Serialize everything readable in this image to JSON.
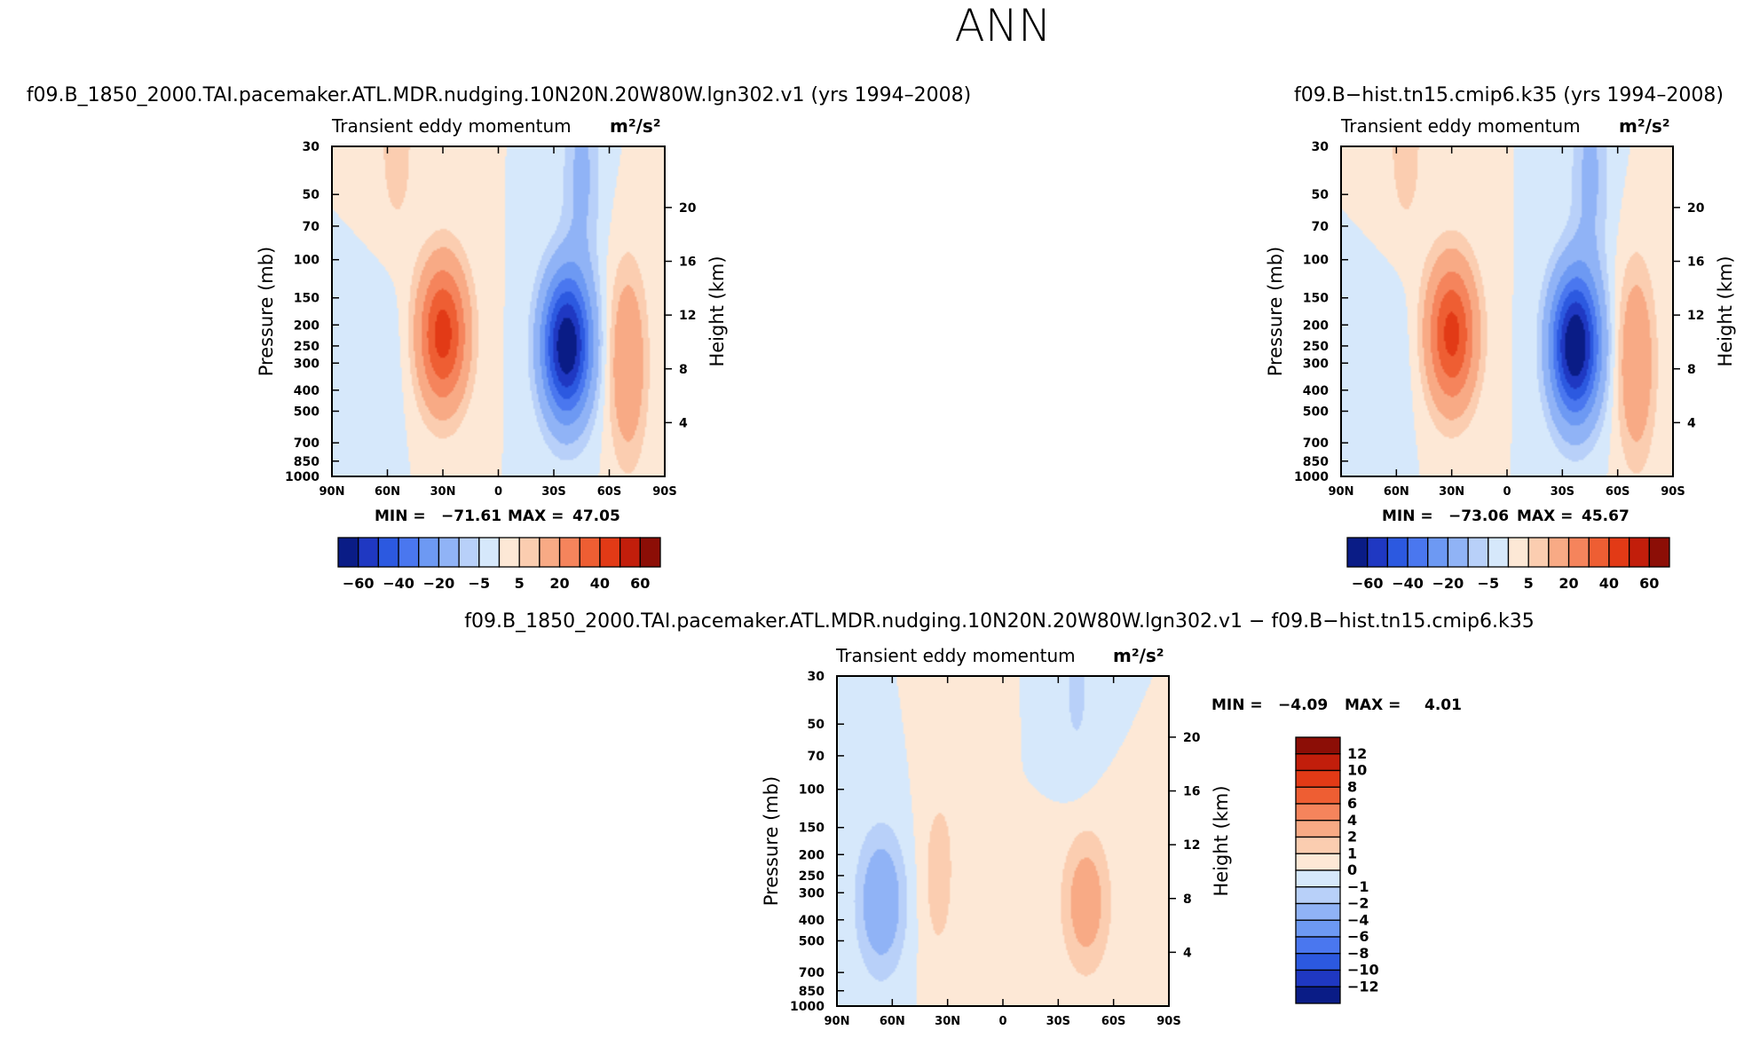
{
  "figure_title": "ANN",
  "chart_data": [
    {
      "id": "panel1",
      "type": "contour",
      "case": "f09.B_1850_2000.TAI.pacemaker.ATL.MDR.nudging.10N20N.20W80W.lgn302.v1 (yrs 1994–2008)",
      "title": "Transient  eddy  momentum",
      "units": "m²/s²",
      "ylabel": "Pressure (mb)",
      "y2label": "Height (km)",
      "xticks": [
        "90N",
        "60N",
        "30N",
        "0",
        "30S",
        "60S",
        "90S"
      ],
      "yticks": [
        30,
        50,
        70,
        100,
        150,
        200,
        250,
        300,
        400,
        500,
        700,
        850,
        1000
      ],
      "height_ticks": [
        20,
        16,
        12,
        8,
        4
      ],
      "min_label": "MIN =",
      "max_label": "MAX =",
      "min": "−71.61",
      "max": "47.05",
      "features": [
        {
          "lat": 30,
          "p": 220,
          "value": 45
        },
        {
          "lat": -37,
          "p": 250,
          "value": -70
        },
        {
          "lat": -70,
          "p": 300,
          "value": 20
        },
        {
          "lat": 60,
          "p": 300,
          "value": -3
        },
        {
          "lat": 55,
          "p": 30,
          "value": 8
        },
        {
          "lat": -45,
          "p": 40,
          "value": -12
        }
      ],
      "colorbar": {
        "levels": [
          -60,
          -50,
          -40,
          -30,
          -20,
          -10,
          -5,
          0,
          5,
          10,
          20,
          30,
          40,
          50,
          60
        ],
        "labels": [
          "−60",
          "−40",
          "−20",
          "−5",
          "5",
          "20",
          "40",
          "60"
        ],
        "colors": [
          "#0a1c86",
          "#1f38c2",
          "#2c59e0",
          "#4a77ef",
          "#6d99f3",
          "#90b3f6",
          "#b8d0f9",
          "#d6e8fb",
          "#fde8d6",
          "#fbcdb0",
          "#f8aa85",
          "#f5845c",
          "#ee5e33",
          "#e23a16",
          "#c21e0b",
          "#8c0e06"
        ]
      }
    },
    {
      "id": "panel2",
      "type": "contour",
      "case": "f09.B−hist.tn15.cmip6.k35 (yrs 1994–2008)",
      "title": "Transient  eddy  momentum",
      "units": "m²/s²",
      "ylabel": "Pressure (mb)",
      "y2label": "Height (km)",
      "xticks": [
        "90N",
        "60N",
        "30N",
        "0",
        "30S",
        "60S",
        "90S"
      ],
      "yticks": [
        30,
        50,
        70,
        100,
        150,
        200,
        250,
        300,
        400,
        500,
        700,
        850,
        1000
      ],
      "height_ticks": [
        20,
        16,
        12,
        8,
        4
      ],
      "min_label": "MIN =",
      "max_label": "MAX =",
      "min": "−73.06",
      "max": "45.67",
      "features": [
        {
          "lat": 30,
          "p": 220,
          "value": 44
        },
        {
          "lat": -37,
          "p": 250,
          "value": -72
        },
        {
          "lat": -70,
          "p": 300,
          "value": 20
        },
        {
          "lat": 60,
          "p": 300,
          "value": -3
        },
        {
          "lat": 55,
          "p": 30,
          "value": 8
        },
        {
          "lat": -45,
          "p": 40,
          "value": -12
        }
      ],
      "colorbar": {
        "levels": [
          -60,
          -50,
          -40,
          -30,
          -20,
          -10,
          -5,
          0,
          5,
          10,
          20,
          30,
          40,
          50,
          60
        ],
        "labels": [
          "−60",
          "−40",
          "−20",
          "−5",
          "5",
          "20",
          "40",
          "60"
        ],
        "colors": [
          "#0a1c86",
          "#1f38c2",
          "#2c59e0",
          "#4a77ef",
          "#6d99f3",
          "#90b3f6",
          "#b8d0f9",
          "#d6e8fb",
          "#fde8d6",
          "#fbcdb0",
          "#f8aa85",
          "#f5845c",
          "#ee5e33",
          "#e23a16",
          "#c21e0b",
          "#8c0e06"
        ]
      }
    },
    {
      "id": "panel3",
      "type": "contour",
      "case": "f09.B_1850_2000.TAI.pacemaker.ATL.MDR.nudging.10N20N.20W80W.lgn302.v1  −  f09.B−hist.tn15.cmip6.k35",
      "title": "Transient  eddy  momentum",
      "units": "m²/s²",
      "ylabel": "Pressure (mb)",
      "y2label": "Height (km)",
      "xticks": [
        "90N",
        "60N",
        "30N",
        "0",
        "30S",
        "60S",
        "90S"
      ],
      "yticks": [
        30,
        50,
        70,
        100,
        150,
        200,
        250,
        300,
        400,
        500,
        700,
        850,
        1000
      ],
      "height_ticks": [
        20,
        16,
        12,
        8,
        4
      ],
      "min_label": "MIN =",
      "max_label": "MAX =",
      "min": "−4.09",
      "max": "4.01",
      "features": [
        {
          "lat": 66,
          "p": 330,
          "value": -3.5
        },
        {
          "lat": -45,
          "p": 330,
          "value": 3.0
        },
        {
          "lat": 35,
          "p": 250,
          "value": 1.5
        },
        {
          "lat": -40,
          "p": 35,
          "value": -1.2
        },
        {
          "lat": 20,
          "p": 60,
          "value": 0.6
        }
      ],
      "colorbar": {
        "levels": [
          -12,
          -10,
          -8,
          -6,
          -4,
          -2,
          -1,
          0,
          1,
          2,
          4,
          6,
          8,
          10,
          12
        ],
        "labels": [
          "12",
          "10",
          "8",
          "6",
          "4",
          "2",
          "1",
          "0",
          "−1",
          "−2",
          "−4",
          "−6",
          "−8",
          "−10",
          "−12"
        ],
        "colors": [
          "#0a1c86",
          "#1f38c2",
          "#2c59e0",
          "#4a77ef",
          "#6d99f3",
          "#90b3f6",
          "#b8d0f9",
          "#d6e8fb",
          "#fde8d6",
          "#fbcdb0",
          "#f8aa85",
          "#f5845c",
          "#ee5e33",
          "#e23a16",
          "#c21e0b",
          "#8c0e06"
        ]
      }
    }
  ]
}
